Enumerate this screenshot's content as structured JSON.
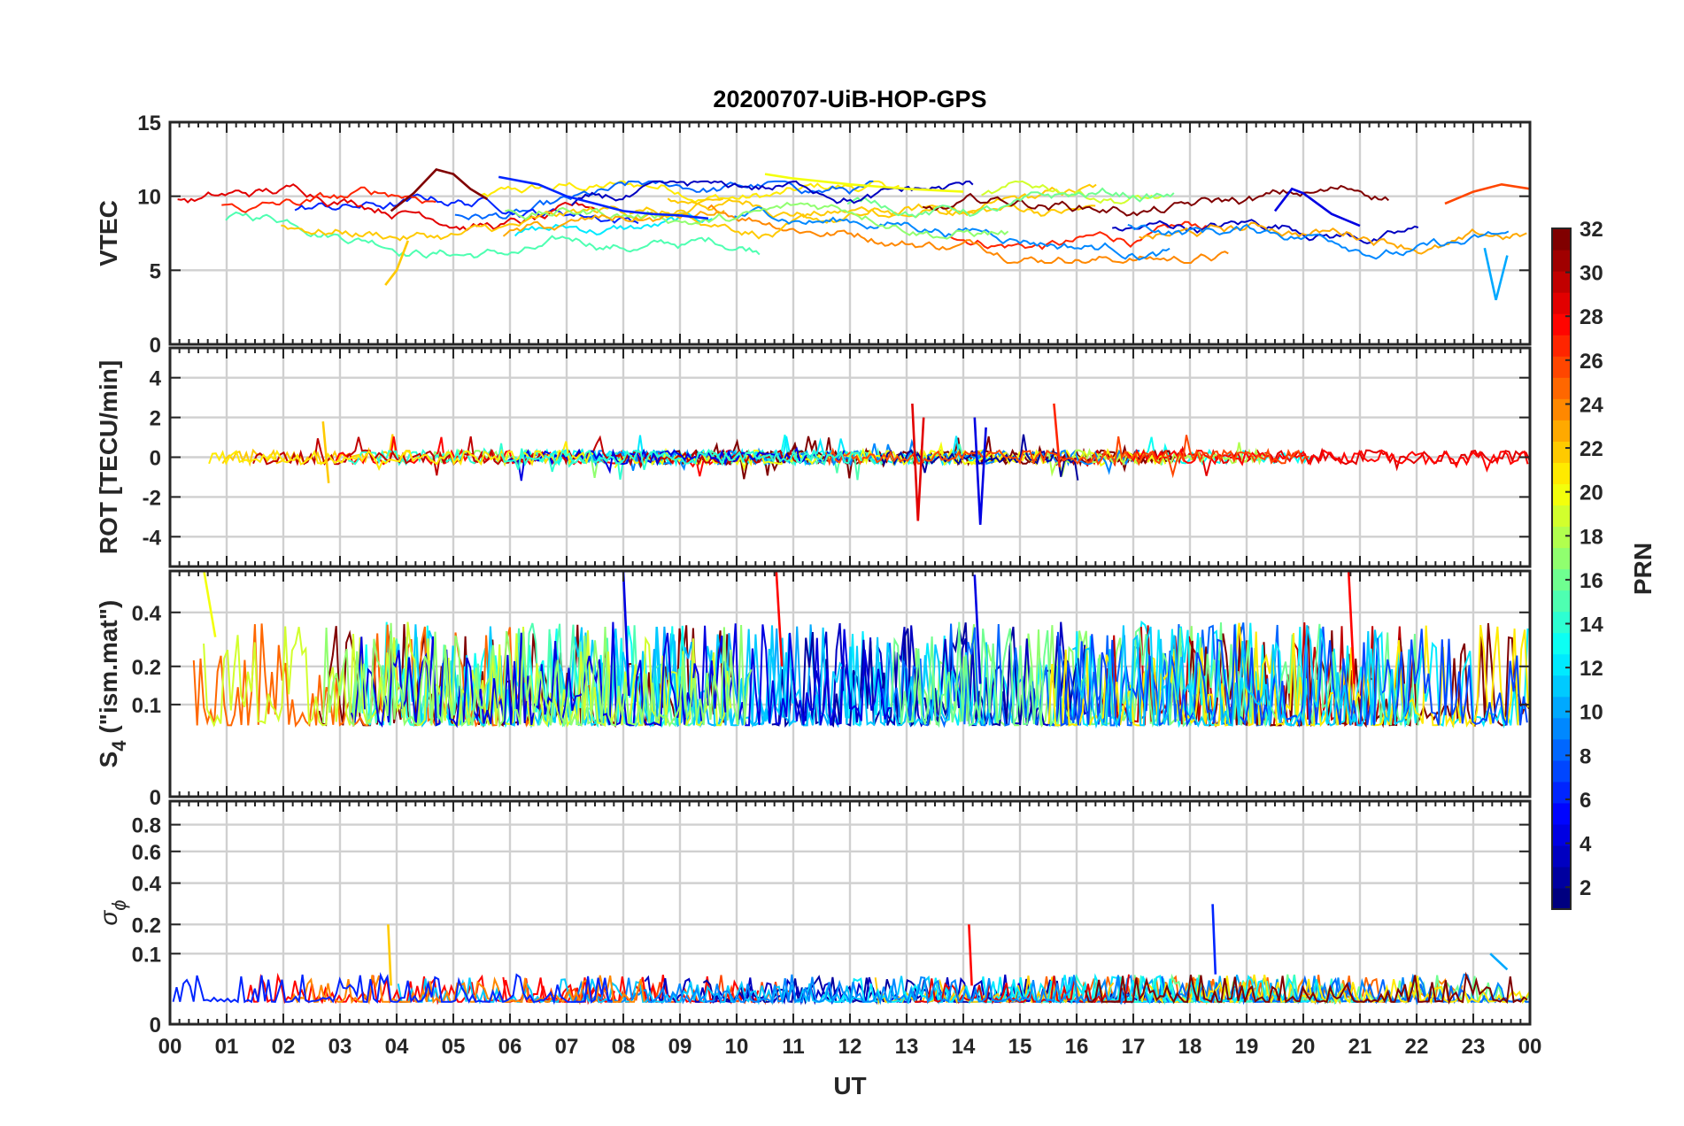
{
  "title": "20200707-UiB-HOP-GPS",
  "x_axis": {
    "label": "UT",
    "tick_labels": [
      "00",
      "01",
      "02",
      "03",
      "04",
      "05",
      "06",
      "07",
      "08",
      "09",
      "10",
      "11",
      "12",
      "13",
      "14",
      "15",
      "16",
      "17",
      "18",
      "19",
      "20",
      "21",
      "22",
      "23",
      "00"
    ],
    "range_hours": [
      0,
      24
    ]
  },
  "colorbar": {
    "label": "PRN",
    "range": [
      1,
      32
    ],
    "tick_labels": [
      "2",
      "4",
      "6",
      "8",
      "10",
      "12",
      "14",
      "16",
      "18",
      "20",
      "22",
      "24",
      "26",
      "28",
      "30",
      "32"
    ],
    "colormap": "jet"
  },
  "panels": [
    {
      "id": "vtec",
      "ylabel": "VTEC",
      "ylim": [
        0,
        15
      ],
      "yticks": [
        0,
        5,
        10,
        15
      ],
      "ytick_labels": [
        "0",
        "5",
        "10",
        "15"
      ]
    },
    {
      "id": "rot",
      "ylabel": "ROT [TECU/min]",
      "ylim": [
        -5.5,
        5.5
      ],
      "yticks": [
        -4,
        -2,
        0,
        2,
        4
      ],
      "ytick_labels": [
        "-4",
        "-2",
        "0",
        "2",
        "4"
      ]
    },
    {
      "id": "s4",
      "ylabel_main": "S",
      "ylabel_sub": "4",
      "ylabel_rest": " (\"ism.mat\")",
      "ylim": [
        0,
        0.6
      ],
      "scale": "sqrt",
      "yticks": [
        0,
        0.1,
        0.2,
        0.4
      ],
      "ytick_labels": [
        "0",
        "0.1",
        "0.2",
        "0.4"
      ]
    },
    {
      "id": "sigma",
      "ylabel_main": "σ",
      "ylabel_sub": "ϕ",
      "ylim": [
        0,
        1
      ],
      "scale": "sqrt",
      "yticks": [
        0,
        0.1,
        0.2,
        0.4,
        0.6,
        0.8
      ],
      "ytick_labels": [
        "0",
        "0.1",
        "0.2",
        "0.4",
        "0.6",
        "0.8"
      ]
    }
  ],
  "chart_data": {
    "type": "line",
    "title": "20200707-UiB-HOP-GPS",
    "xlabel": "UT",
    "color_by": "PRN",
    "series": [
      {
        "name": "32",
        "panel": "vtec",
        "x": [
          3.9,
          4.3,
          4.7,
          5.0,
          5.3,
          5.6
        ],
        "y": [
          9.0,
          10.2,
          11.8,
          11.5,
          10.5,
          9.8
        ]
      },
      {
        "name": "6",
        "panel": "vtec",
        "x": [
          5.8,
          6.5,
          7.0,
          7.5,
          8.0,
          8.5,
          9.0,
          9.5
        ],
        "y": [
          11.3,
          10.8,
          10.0,
          9.5,
          9.0,
          8.8,
          8.7,
          8.5
        ]
      },
      {
        "name": "20",
        "panel": "vtec",
        "x": [
          10.5,
          11.0,
          12.0,
          13.0,
          14.0
        ],
        "y": [
          11.5,
          11.2,
          10.8,
          10.5,
          10.3
        ]
      },
      {
        "name": "4",
        "panel": "vtec",
        "x": [
          19.5,
          19.8,
          20.0,
          20.5,
          21.0
        ],
        "y": [
          9.0,
          10.5,
          10.2,
          8.8,
          8.0
        ]
      },
      {
        "name": "26",
        "panel": "vtec",
        "x": [
          22.5,
          23.0,
          23.5,
          24.0
        ],
        "y": [
          9.5,
          10.3,
          10.8,
          10.5
        ]
      },
      {
        "name": "22",
        "panel": "vtec",
        "x": [
          3.8,
          4.0,
          4.2
        ],
        "y": [
          4.0,
          5.0,
          7.0
        ]
      },
      {
        "name": "10",
        "panel": "vtec",
        "x": [
          23.2,
          23.4,
          23.6
        ],
        "y": [
          6.5,
          3.0,
          6.0
        ]
      },
      {
        "name": "29",
        "panel": "rot",
        "x": [
          13.1,
          13.2,
          13.3
        ],
        "y": [
          2.7,
          -3.2,
          2.0
        ]
      },
      {
        "name": "4",
        "panel": "rot",
        "x": [
          14.2,
          14.3,
          14.4
        ],
        "y": [
          2.0,
          -3.4,
          1.5
        ]
      },
      {
        "name": "27",
        "panel": "rot",
        "x": [
          15.6,
          15.7
        ],
        "y": [
          2.7,
          -0.5
        ]
      },
      {
        "name": "22",
        "panel": "rot",
        "x": [
          2.7,
          2.8
        ],
        "y": [
          1.8,
          -1.3
        ]
      },
      {
        "name": "4",
        "panel": "s4",
        "x": [
          8.0,
          8.1
        ],
        "y": [
          0.6,
          0.12
        ]
      },
      {
        "name": "20",
        "panel": "s4",
        "x": [
          0.6,
          0.8
        ],
        "y": [
          0.6,
          0.3
        ]
      },
      {
        "name": "4",
        "panel": "s4",
        "x": [
          14.2,
          14.3
        ],
        "y": [
          0.58,
          0.15
        ]
      },
      {
        "name": "28",
        "panel": "s4",
        "x": [
          10.7,
          10.8
        ],
        "y": [
          0.6,
          0.2
        ]
      },
      {
        "name": "28",
        "panel": "s4",
        "x": [
          20.8,
          20.9
        ],
        "y": [
          0.6,
          0.15
        ]
      },
      {
        "name": "6",
        "panel": "sigma",
        "x": [
          18.4,
          18.45
        ],
        "y": [
          0.29,
          0.05
        ]
      },
      {
        "name": "28",
        "panel": "sigma",
        "x": [
          14.1,
          14.15
        ],
        "y": [
          0.2,
          0.03
        ]
      },
      {
        "name": "22",
        "panel": "sigma",
        "x": [
          3.85,
          3.9
        ],
        "y": [
          0.2,
          0.03
        ]
      },
      {
        "name": "10",
        "panel": "sigma",
        "x": [
          23.3,
          23.6
        ],
        "y": [
          0.1,
          0.06
        ]
      }
    ]
  }
}
